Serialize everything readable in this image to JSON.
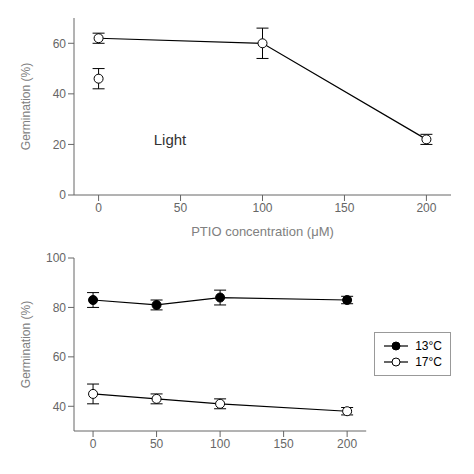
{
  "chart_data": [
    {
      "type": "line",
      "xlabel": "PTIO concentration (μM)",
      "ylabel": "Germination (%)",
      "xlim": [
        -15,
        215
      ],
      "xticks": [
        0,
        50,
        100,
        150,
        200
      ],
      "ylim": [
        0,
        70
      ],
      "yticks": [
        0,
        20,
        40,
        60
      ],
      "grid": false,
      "annotations": [
        {
          "text": "Light",
          "x": 30,
          "y": 22
        }
      ],
      "series": [
        {
          "x": [
            0,
            100,
            200
          ],
          "values": [
            62,
            60,
            22
          ],
          "yerr": [
            2,
            6,
            2
          ],
          "color": "black",
          "marker": "open",
          "line_style": "solid"
        },
        {
          "x": [
            0
          ],
          "values": [
            46
          ],
          "yerr": [
            4
          ],
          "color": "black",
          "marker": "open",
          "line_style": "none"
        }
      ]
    },
    {
      "type": "line",
      "ylabel": "Germination (%)",
      "xlim": [
        -15,
        215
      ],
      "xticks": [
        0,
        50,
        100,
        150,
        200
      ],
      "ylim": [
        30,
        100
      ],
      "yticks": [
        40,
        60,
        80,
        100
      ],
      "grid": false,
      "legend": "right",
      "series": [
        {
          "name": "13°C",
          "x": [
            0,
            50,
            100,
            200
          ],
          "values": [
            83,
            81,
            84,
            83
          ],
          "yerr": [
            3,
            2,
            3,
            1.5
          ],
          "color": "black",
          "marker": "filled",
          "line_style": "solid"
        },
        {
          "name": "17°C",
          "x": [
            0,
            50,
            100,
            200
          ],
          "values": [
            45,
            43,
            41,
            38
          ],
          "yerr": [
            4,
            2,
            2,
            1.5
          ],
          "color": "black",
          "marker": "open",
          "line_style": "solid"
        }
      ]
    }
  ]
}
